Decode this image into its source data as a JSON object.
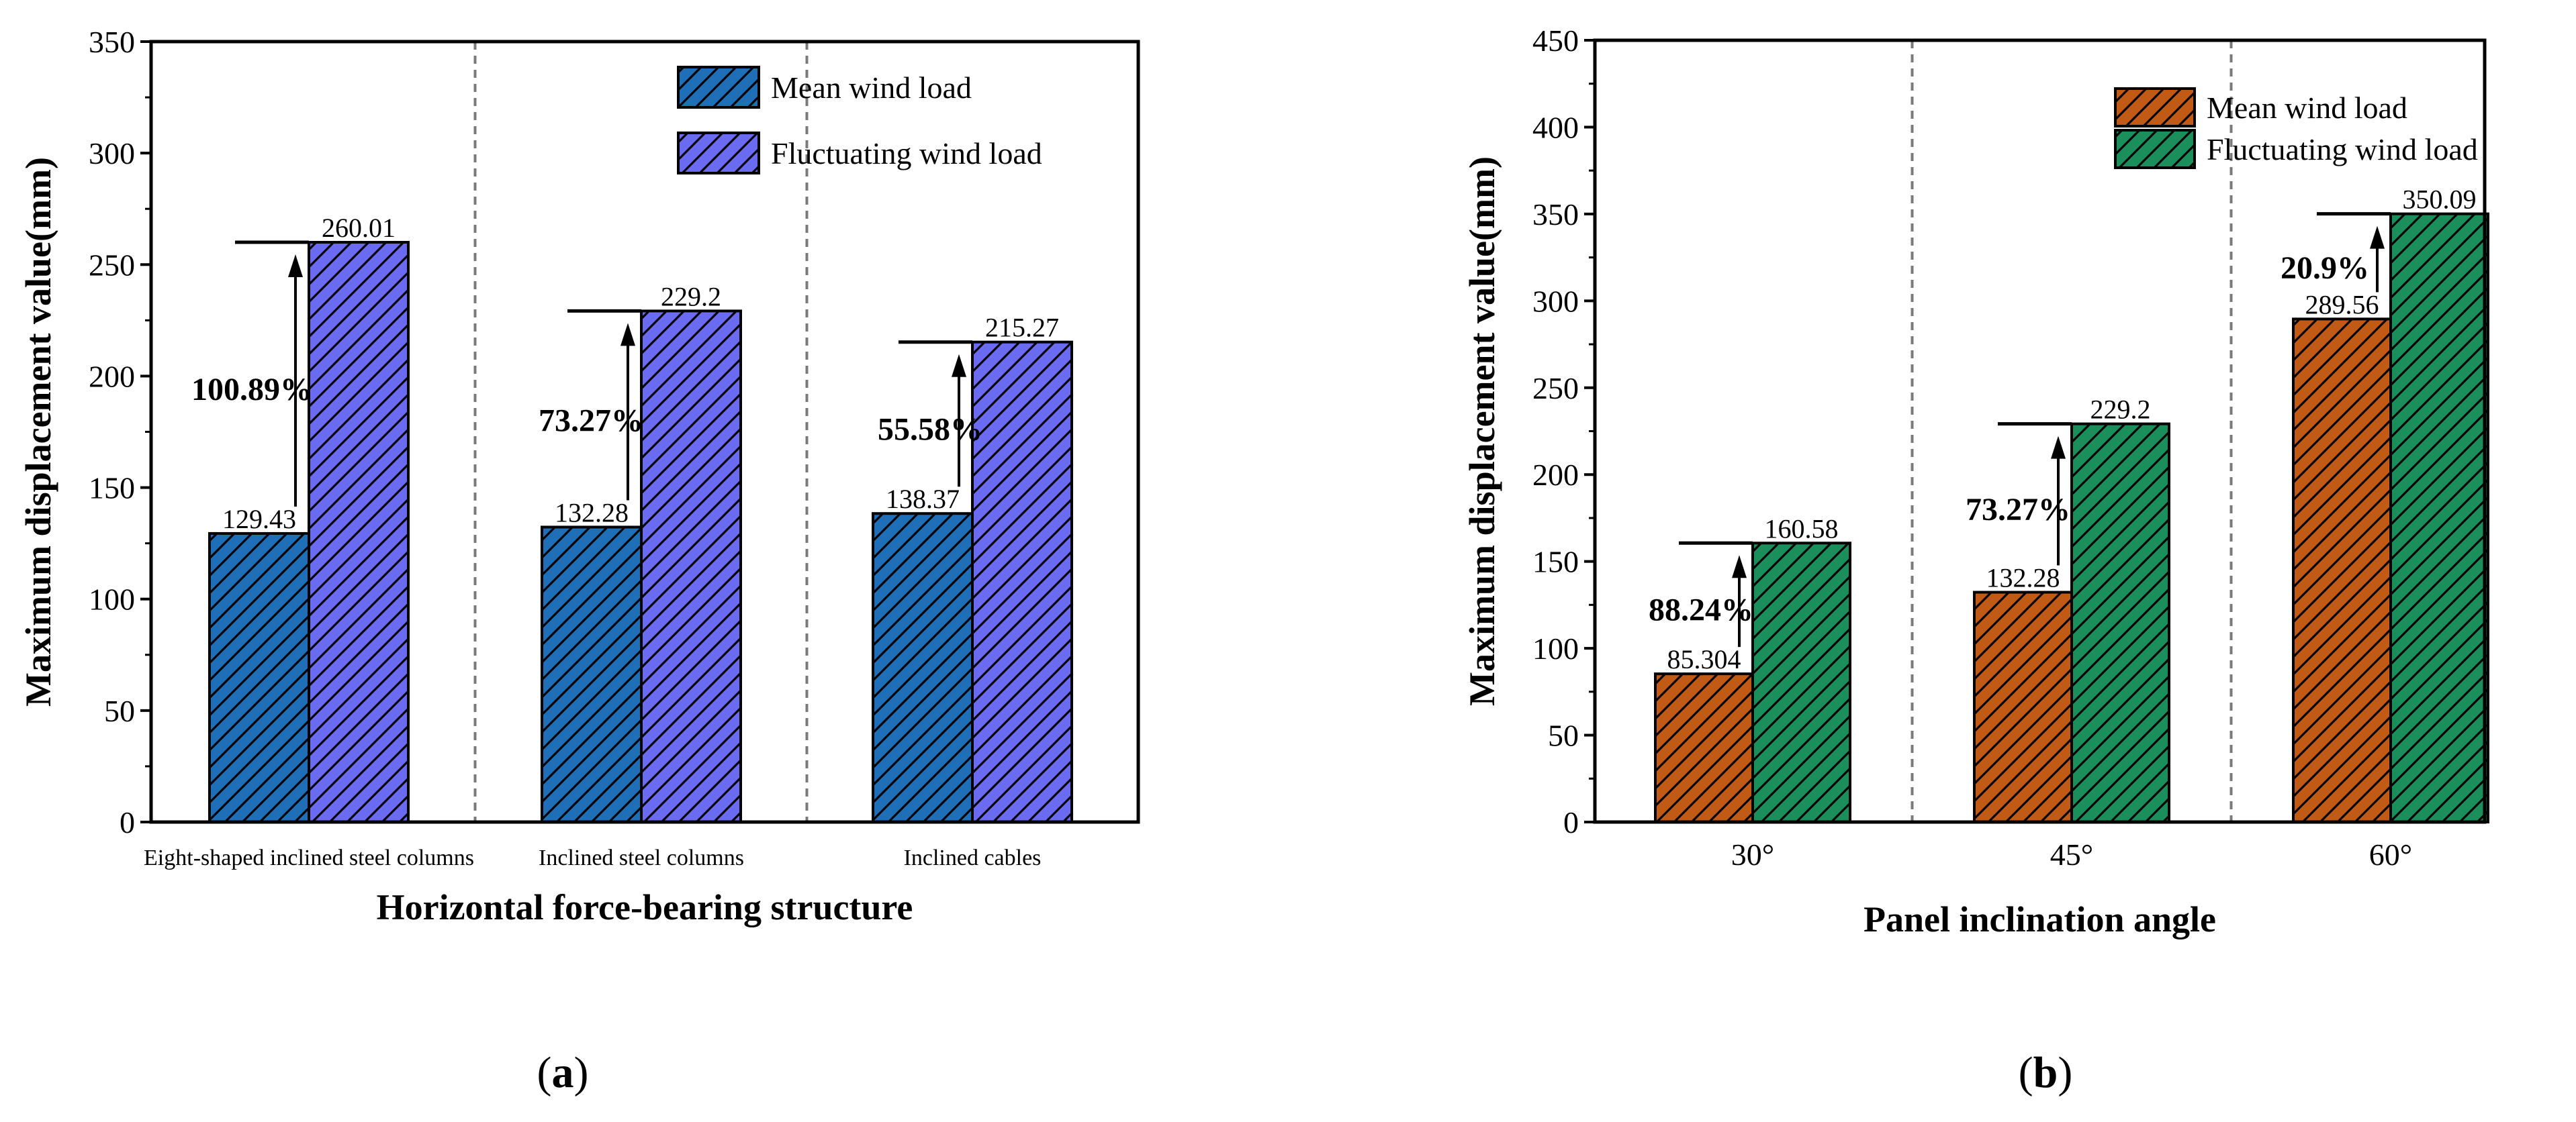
{
  "chart_data": [
    {
      "type": "bar",
      "panel_label": "(a)",
      "panel_label_parts": [
        "(",
        "a",
        ")"
      ],
      "title": "",
      "xlabel": "Horizontal force-bearing structure",
      "ylabel": "Maximum displacement value(mm)",
      "ylim": [
        0,
        350
      ],
      "ytick_step": 50,
      "yticks": [
        0,
        50,
        100,
        150,
        200,
        250,
        300,
        350
      ],
      "categories": [
        "Eight-shaped inclined steel columns",
        "Inclined steel columns",
        "Inclined cables"
      ],
      "series": [
        {
          "name": "Mean wind load",
          "values": [
            129.43,
            132.28,
            138.37
          ],
          "labels": [
            "129.43",
            "132.28",
            "138.37"
          ],
          "color": "#1f6fb8"
        },
        {
          "name": "Fluctuating wind load",
          "values": [
            260.01,
            229.2,
            215.27
          ],
          "labels": [
            "260.01",
            "229.2",
            "215.27"
          ],
          "color": "#6b6bf2"
        }
      ],
      "increase_labels": [
        "100.89%",
        "73.27%",
        "55.58%"
      ],
      "legend_position": "top-right",
      "category_separators": "dashed"
    },
    {
      "type": "bar",
      "panel_label": "(b)",
      "panel_label_parts": [
        "(",
        "b",
        ")"
      ],
      "title": "",
      "xlabel": "Panel inclination angle",
      "ylabel": "Maximum displacement value(mm)",
      "ylim": [
        0,
        450
      ],
      "ytick_step": 50,
      "yticks": [
        0,
        50,
        100,
        150,
        200,
        250,
        300,
        350,
        400,
        450
      ],
      "categories": [
        "30°",
        "45°",
        "60°"
      ],
      "series": [
        {
          "name": "Mean wind load",
          "values": [
            85.304,
            132.28,
            289.56
          ],
          "labels": [
            "85.304",
            "132.28",
            "289.56"
          ],
          "color": "#c05a14"
        },
        {
          "name": "Fluctuating wind load",
          "values": [
            160.58,
            229.2,
            350.09
          ],
          "labels": [
            "160.58",
            "229.2",
            "350.09"
          ],
          "color": "#1a8f5c"
        }
      ],
      "increase_labels": [
        "88.24%",
        "73.27%",
        "20.9%"
      ],
      "legend_position": "top-center",
      "category_separators": "dashed"
    }
  ]
}
